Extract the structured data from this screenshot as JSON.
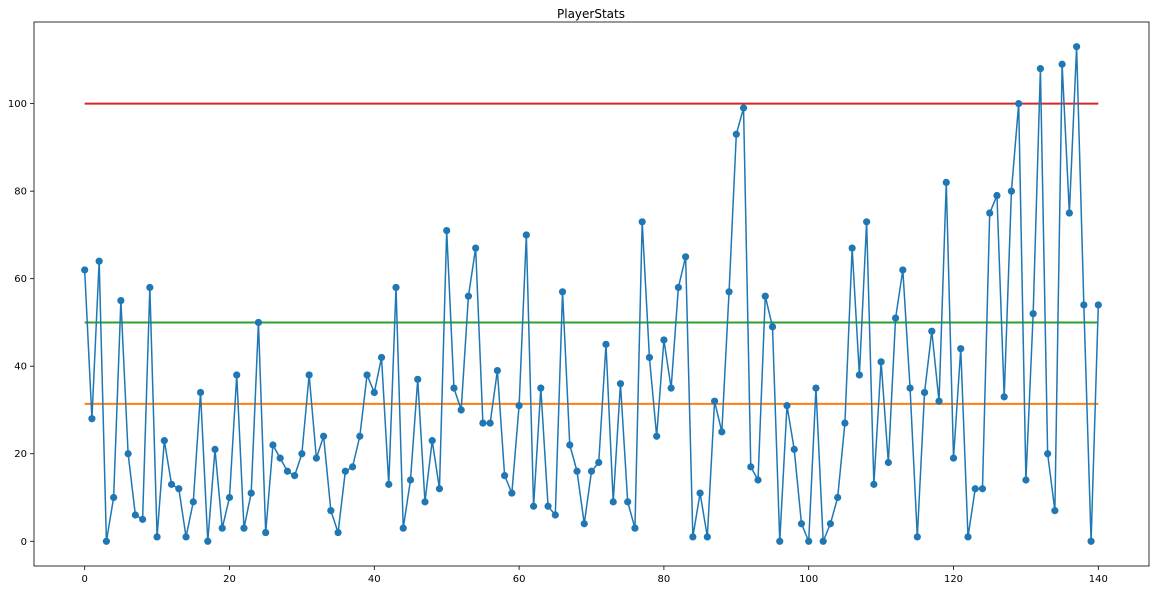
{
  "chart_data": {
    "type": "line",
    "title": "PlayerStats",
    "xlabel": "",
    "ylabel": "",
    "xlim": [
      -7,
      147
    ],
    "ylim": [
      -5.65,
      118.65
    ],
    "xticks": [
      0,
      20,
      40,
      60,
      80,
      100,
      120,
      140
    ],
    "yticks": [
      0,
      20,
      40,
      60,
      80,
      100
    ],
    "grid": false,
    "legend": "none",
    "x_start": 0,
    "series": [
      {
        "color": "#1f77b4",
        "marker": "circle",
        "values": [
          62,
          28,
          64,
          0,
          10,
          55,
          20,
          6,
          5,
          58,
          1,
          23,
          13,
          12,
          1,
          9,
          34,
          0,
          21,
          3,
          10,
          38,
          3,
          11,
          50,
          2,
          22,
          19,
          16,
          15,
          20,
          38,
          19,
          24,
          7,
          2,
          16,
          17,
          24,
          38,
          34,
          42,
          13,
          58,
          3,
          14,
          37,
          9,
          23,
          12,
          71,
          35,
          30,
          56,
          67,
          27,
          27,
          39,
          15,
          11,
          31,
          70,
          8,
          35,
          8,
          6,
          57,
          22,
          16,
          4,
          16,
          18,
          45,
          9,
          36,
          9,
          3,
          73,
          42,
          24,
          46,
          35,
          58,
          65,
          1,
          11,
          1,
          32,
          25,
          57,
          93,
          99,
          17,
          14,
          56,
          49,
          0,
          31,
          21,
          4,
          0,
          35,
          0,
          4,
          10,
          27,
          67,
          38,
          73,
          13,
          41,
          18,
          51,
          62,
          35,
          1,
          34,
          48,
          32,
          82,
          19,
          44,
          1,
          12,
          12,
          75,
          79,
          33,
          80,
          100,
          14,
          52,
          108,
          20,
          7,
          109,
          75,
          113,
          54,
          0,
          54
        ]
      }
    ],
    "hlines": [
      {
        "y": 31.4,
        "color": "#ff7f0e"
      },
      {
        "y": 50,
        "color": "#2ca02c"
      },
      {
        "y": 100,
        "color": "#d62728"
      }
    ],
    "colors": {
      "axis": "#000000",
      "background": "#ffffff"
    }
  }
}
